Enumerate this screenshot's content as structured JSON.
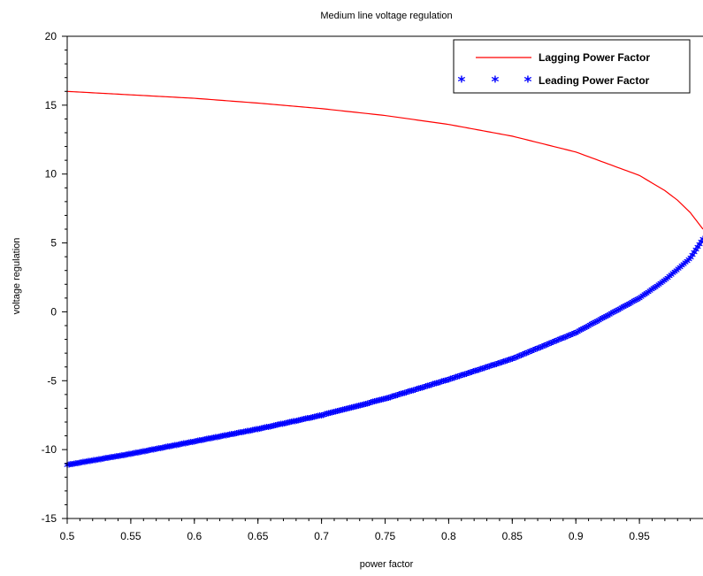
{
  "chart_data": {
    "type": "line",
    "title": "Medium line voltage regulation",
    "xlabel": "power factor",
    "ylabel": "voltage regulation",
    "xlim": [
      0.5,
      1.0
    ],
    "ylim": [
      -15,
      20
    ],
    "x_ticks": [
      "0.5",
      "0.55",
      "0.6",
      "0.65",
      "0.7",
      "0.75",
      "0.8",
      "0.85",
      "0.9",
      "0.95"
    ],
    "y_ticks": [
      "-15",
      "-10",
      "-5",
      "0",
      "5",
      "10",
      "15",
      "20"
    ],
    "grid": false,
    "legend_position": "top-right",
    "series": [
      {
        "name": "Lagging Power Factor",
        "style": "line",
        "color": "#ff0000",
        "x": [
          0.5,
          0.55,
          0.6,
          0.65,
          0.7,
          0.75,
          0.8,
          0.85,
          0.9,
          0.95,
          0.97,
          0.98,
          0.99,
          1.0
        ],
        "y": [
          16.0,
          15.75,
          15.5,
          15.15,
          14.75,
          14.25,
          13.6,
          12.75,
          11.6,
          9.9,
          8.8,
          8.1,
          7.2,
          6.0
        ]
      },
      {
        "name": "Leading Power Factor",
        "style": "markers",
        "marker": "*",
        "color": "#0000ff",
        "x": [
          0.5,
          0.55,
          0.6,
          0.65,
          0.7,
          0.75,
          0.8,
          0.85,
          0.9,
          0.95,
          0.97,
          0.98,
          0.99,
          1.0
        ],
        "y": [
          -11.2,
          -10.4,
          -9.5,
          -8.6,
          -7.6,
          -6.4,
          -5.0,
          -3.5,
          -1.6,
          0.9,
          2.2,
          3.0,
          3.8,
          5.2
        ]
      }
    ]
  }
}
